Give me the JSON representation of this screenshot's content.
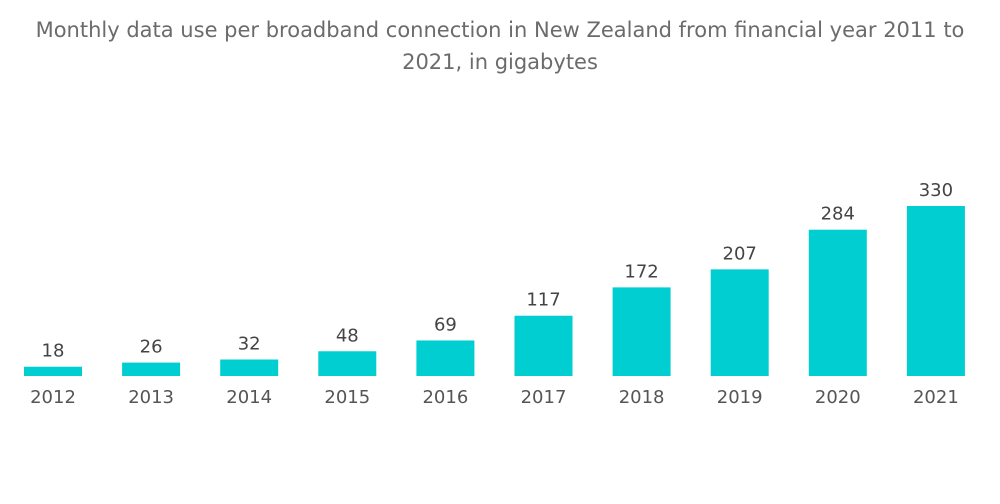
{
  "chart_data": {
    "type": "bar",
    "title_lines": [
      "Monthly data use per broadband connection in New Zealand from financial year 2011 to",
      "2021, in gigabytes"
    ],
    "categories": [
      "2012",
      "2013",
      "2014",
      "2015",
      "2016",
      "2017",
      "2018",
      "2019",
      "2020",
      "2021"
    ],
    "values": [
      18,
      26,
      32,
      48,
      69,
      117,
      172,
      207,
      284,
      330
    ],
    "xlabel": "",
    "ylabel": "",
    "ylim": [
      0,
      330
    ],
    "grid": false,
    "bar_color": "#00CED1"
  }
}
